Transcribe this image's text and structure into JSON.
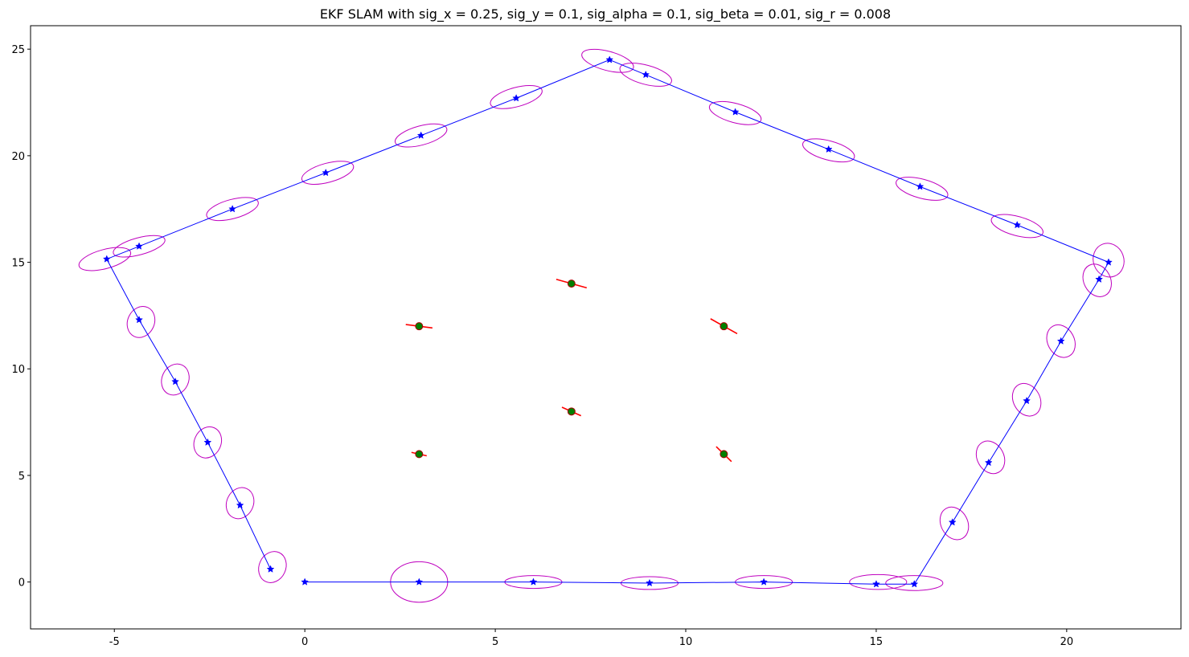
{
  "chart_data": {
    "type": "scatter",
    "title": "EKF SLAM with sig_x = 0.25, sig_y = 0.1, sig_alpha = 0.1, sig_beta = 0.01, sig_r = 0.008",
    "xlabel": "",
    "ylabel": "",
    "xlim": [
      -7.2,
      23.0
    ],
    "ylim": [
      -2.2,
      26.1
    ],
    "xticks": [
      -5,
      0,
      5,
      10,
      15,
      20
    ],
    "yticks": [
      0,
      5,
      10,
      15,
      20,
      25
    ],
    "grid": false,
    "colors": {
      "trajectory": "#0000ff",
      "robot_covariance": "#bf00bf",
      "landmark": "#008000",
      "landmark_covariance": "#ff0000"
    },
    "trajectory": {
      "x": [
        0,
        3,
        6,
        9.05,
        12.05,
        15,
        16,
        17,
        17.95,
        18.95,
        19.85,
        20.85,
        21.1,
        18.7,
        16.15,
        13.75,
        11.3,
        8.95,
        8,
        5.55,
        3.05,
        0.55,
        -1.9,
        -4.35,
        -5.2,
        -4.35,
        -3.4,
        -2.55,
        -1.7,
        -0.9
      ],
      "y": [
        0,
        0,
        0,
        -0.05,
        0,
        -0.1,
        -0.1,
        2.8,
        5.6,
        8.5,
        11.3,
        14.2,
        15.0,
        16.75,
        18.55,
        20.3,
        22.05,
        23.8,
        24.5,
        22.7,
        20.95,
        19.2,
        17.5,
        15.75,
        15.15,
        12.3,
        9.4,
        6.55,
        3.6,
        0.6
      ]
    },
    "robot_covariance_ellipses": [
      {
        "x": 3.0,
        "y": 0.0,
        "rx": 0.75,
        "ry": 0.95,
        "angle": 0
      },
      {
        "x": 6.0,
        "y": 0.0,
        "rx": 0.75,
        "ry": 0.3,
        "angle": 0
      },
      {
        "x": 9.05,
        "y": -0.05,
        "rx": 0.75,
        "ry": 0.3,
        "angle": 0
      },
      {
        "x": 12.05,
        "y": 0.0,
        "rx": 0.75,
        "ry": 0.3,
        "angle": 0
      },
      {
        "x": 15.05,
        "y": 0.0,
        "rx": 0.75,
        "ry": 0.35,
        "angle": 0
      },
      {
        "x": 16.0,
        "y": -0.05,
        "rx": 0.75,
        "ry": 0.35,
        "angle": 0
      },
      {
        "x": 17.05,
        "y": 2.75,
        "rx": 0.35,
        "ry": 0.8,
        "angle": 28
      },
      {
        "x": 18.0,
        "y": 5.85,
        "rx": 0.35,
        "ry": 0.8,
        "angle": 28
      },
      {
        "x": 18.95,
        "y": 8.55,
        "rx": 0.35,
        "ry": 0.8,
        "angle": 28
      },
      {
        "x": 19.85,
        "y": 11.3,
        "rx": 0.35,
        "ry": 0.8,
        "angle": 28
      },
      {
        "x": 20.8,
        "y": 14.15,
        "rx": 0.35,
        "ry": 0.8,
        "angle": 28
      },
      {
        "x": 21.1,
        "y": 15.1,
        "rx": 0.4,
        "ry": 0.8,
        "angle": 20
      },
      {
        "x": 18.7,
        "y": 16.7,
        "rx": 0.7,
        "ry": 0.45,
        "angle": -15
      },
      {
        "x": 16.2,
        "y": 18.45,
        "rx": 0.7,
        "ry": 0.45,
        "angle": -15
      },
      {
        "x": 13.75,
        "y": 20.25,
        "rx": 0.7,
        "ry": 0.45,
        "angle": -15
      },
      {
        "x": 11.3,
        "y": 22.0,
        "rx": 0.7,
        "ry": 0.45,
        "angle": -15
      },
      {
        "x": 8.95,
        "y": 23.8,
        "rx": 0.7,
        "ry": 0.45,
        "angle": -15
      },
      {
        "x": 7.95,
        "y": 24.45,
        "rx": 0.7,
        "ry": 0.45,
        "angle": -15
      },
      {
        "x": 5.55,
        "y": 22.75,
        "rx": 0.7,
        "ry": 0.45,
        "angle": 15
      },
      {
        "x": 3.05,
        "y": 20.95,
        "rx": 0.7,
        "ry": 0.45,
        "angle": 15
      },
      {
        "x": 0.6,
        "y": 19.2,
        "rx": 0.7,
        "ry": 0.45,
        "angle": 15
      },
      {
        "x": -1.9,
        "y": 17.5,
        "rx": 0.7,
        "ry": 0.45,
        "angle": 15
      },
      {
        "x": -4.35,
        "y": 15.75,
        "rx": 0.7,
        "ry": 0.4,
        "angle": 15
      },
      {
        "x": -5.25,
        "y": 15.15,
        "rx": 0.7,
        "ry": 0.45,
        "angle": 15
      },
      {
        "x": -4.3,
        "y": 12.2,
        "rx": 0.35,
        "ry": 0.75,
        "angle": -25
      },
      {
        "x": -3.4,
        "y": 9.5,
        "rx": 0.35,
        "ry": 0.75,
        "angle": -25
      },
      {
        "x": -2.55,
        "y": 6.55,
        "rx": 0.35,
        "ry": 0.75,
        "angle": -25
      },
      {
        "x": -1.7,
        "y": 3.7,
        "rx": 0.35,
        "ry": 0.75,
        "angle": -25
      },
      {
        "x": -0.85,
        "y": 0.7,
        "rx": 0.35,
        "ry": 0.75,
        "angle": -25
      }
    ],
    "landmarks": {
      "x": [
        3,
        7,
        11,
        3,
        7,
        11
      ],
      "y": [
        6,
        8,
        6,
        12,
        14,
        12
      ]
    },
    "landmark_covariance_segments": [
      {
        "x1": 2.8,
        "y1": 6.08,
        "x2": 3.2,
        "y2": 5.92
      },
      {
        "x1": 6.75,
        "y1": 8.2,
        "x2": 7.25,
        "y2": 7.8
      },
      {
        "x1": 10.8,
        "y1": 6.35,
        "x2": 11.2,
        "y2": 5.65
      },
      {
        "x1": 2.65,
        "y1": 12.08,
        "x2": 3.35,
        "y2": 11.92
      },
      {
        "x1": 6.6,
        "y1": 14.2,
        "x2": 7.4,
        "y2": 13.8
      },
      {
        "x1": 10.65,
        "y1": 12.35,
        "x2": 11.35,
        "y2": 11.65
      }
    ]
  }
}
